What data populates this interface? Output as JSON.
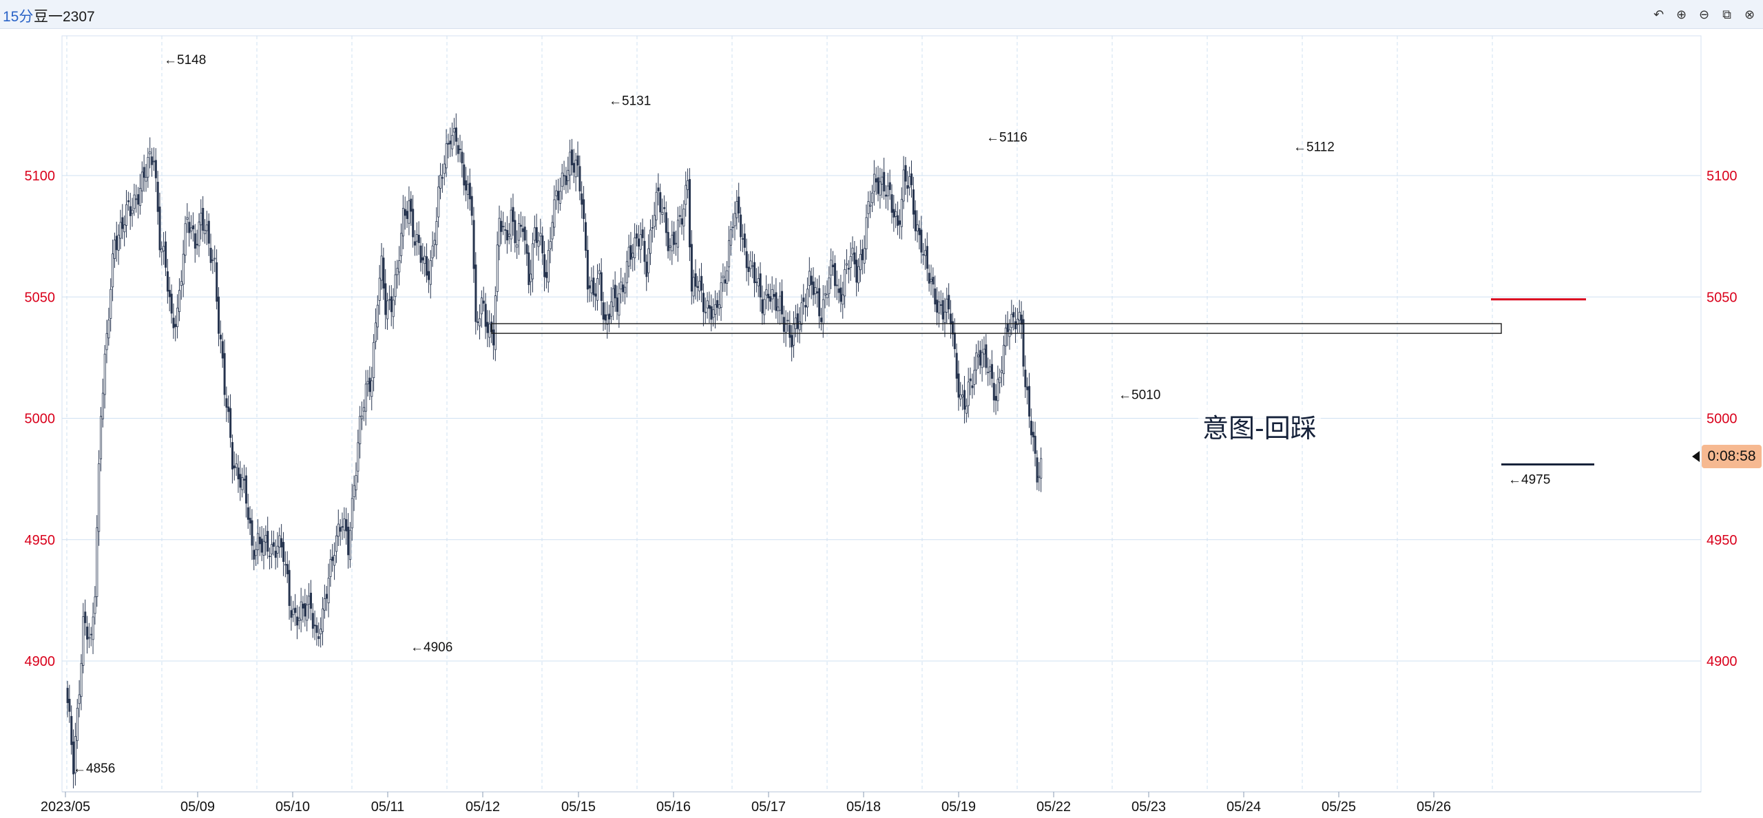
{
  "header": {
    "period": "15分",
    "symbol": "豆一2307",
    "tools": [
      {
        "name": "undo-icon",
        "glyph": "↶"
      },
      {
        "name": "zoom-in-icon",
        "glyph": "⊕"
      },
      {
        "name": "zoom-out-icon",
        "glyph": "⊖"
      },
      {
        "name": "layout-icon",
        "glyph": "⧉"
      },
      {
        "name": "close-icon",
        "glyph": "⊗"
      }
    ]
  },
  "colors": {
    "price_axis": "#d9001b",
    "candle": "#26344f",
    "support_line": "#d9001b",
    "grid": "#cfe0f2",
    "countdown_bg": "#f6b991"
  },
  "countdown": "0:08:58",
  "annotation": "意图-回踩",
  "chart_data": {
    "type": "candlestick",
    "title": "",
    "xlabel": "",
    "ylabel": "",
    "ylim": [
      4860,
      5148
    ],
    "yticks": [
      4900,
      4950,
      5000,
      5050,
      5100
    ],
    "x_ticks": [
      "2023/05",
      "05/09",
      "05/10",
      "05/11",
      "05/12",
      "05/15",
      "05/16",
      "05/17",
      "05/18",
      "05/19",
      "05/22",
      "05/23",
      "05/24",
      "05/25",
      "05/26"
    ],
    "extrema_labels": [
      {
        "date": "05/08",
        "price": 5148,
        "label": "←5148"
      },
      {
        "date": "05/15",
        "price": 5131,
        "label": "←5131"
      },
      {
        "date": "05/19",
        "price": 5116,
        "label": "←5116"
      },
      {
        "date": "05/24",
        "price": 5112,
        "label": "←5112"
      },
      {
        "date": "05/22",
        "price": 5010,
        "label": "←5010"
      },
      {
        "date": "05/26",
        "price": 4975,
        "label": "←4975"
      },
      {
        "date": "05/11",
        "price": 4906,
        "label": "←4906"
      },
      {
        "date": "2023/05",
        "price": 4856,
        "label": "←4856"
      }
    ],
    "zone": {
      "from": "05/12",
      "to": "05/26",
      "low": 5035,
      "high": 5039
    },
    "support_level": 5049,
    "last_price": 4981,
    "anchors": [
      [
        0,
        4880
      ],
      [
        3,
        4857
      ],
      [
        8,
        4915
      ],
      [
        12,
        4905
      ],
      [
        14,
        4932
      ],
      [
        17,
        5005
      ],
      [
        20,
        5030
      ],
      [
        24,
        5075
      ],
      [
        28,
        5080
      ],
      [
        32,
        5085
      ],
      [
        36,
        5095
      ],
      [
        40,
        5100
      ],
      [
        44,
        5110
      ],
      [
        47,
        5075
      ],
      [
        50,
        5060
      ],
      [
        53,
        5040
      ],
      [
        56,
        5045
      ],
      [
        58,
        5060
      ],
      [
        61,
        5080
      ],
      [
        65,
        5075
      ],
      [
        68,
        5082
      ],
      [
        72,
        5070
      ],
      [
        75,
        5065
      ],
      [
        77,
        5040
      ],
      [
        80,
        5010
      ],
      [
        84,
        4985
      ],
      [
        88,
        4975
      ],
      [
        91,
        4965
      ],
      [
        94,
        4948
      ],
      [
        97,
        4950
      ],
      [
        100,
        4945
      ],
      [
        104,
        4947
      ],
      [
        107,
        4950
      ],
      [
        110,
        4942
      ],
      [
        113,
        4925
      ],
      [
        116,
        4920
      ],
      [
        120,
        4918
      ],
      [
        124,
        4925
      ],
      [
        127,
        4910
      ],
      [
        130,
        4915
      ],
      [
        133,
        4935
      ],
      [
        136,
        4950
      ],
      [
        140,
        4955
      ],
      [
        143,
        4948
      ],
      [
        146,
        4975
      ],
      [
        149,
        4995
      ],
      [
        152,
        5010
      ],
      [
        155,
        5020
      ],
      [
        158,
        5050
      ],
      [
        160,
        5060
      ],
      [
        162,
        5045
      ],
      [
        165,
        5050
      ],
      [
        168,
        5060
      ],
      [
        171,
        5080
      ],
      [
        174,
        5090
      ],
      [
        177,
        5075
      ],
      [
        180,
        5065
      ],
      [
        183,
        5060
      ],
      [
        186,
        5070
      ],
      [
        189,
        5090
      ],
      [
        192,
        5105
      ],
      [
        195,
        5120
      ],
      [
        198,
        5115
      ],
      [
        201,
        5100
      ],
      [
        204,
        5095
      ],
      [
        206,
        5090
      ],
      [
        208,
        5035
      ],
      [
        211,
        5045
      ],
      [
        214,
        5040
      ],
      [
        217,
        5035
      ],
      [
        220,
        5080
      ],
      [
        223,
        5075
      ],
      [
        226,
        5085
      ],
      [
        229,
        5070
      ],
      [
        232,
        5080
      ],
      [
        235,
        5060
      ],
      [
        238,
        5075
      ],
      [
        241,
        5070
      ],
      [
        244,
        5060
      ],
      [
        247,
        5085
      ],
      [
        250,
        5090
      ],
      [
        253,
        5100
      ],
      [
        256,
        5108
      ],
      [
        259,
        5102
      ],
      [
        262,
        5090
      ],
      [
        265,
        5060
      ],
      [
        268,
        5050
      ],
      [
        271,
        5055
      ],
      [
        274,
        5040
      ],
      [
        277,
        5050
      ],
      [
        280,
        5045
      ],
      [
        283,
        5055
      ],
      [
        286,
        5070
      ],
      [
        289,
        5068
      ],
      [
        292,
        5075
      ],
      [
        295,
        5065
      ],
      [
        298,
        5080
      ],
      [
        301,
        5090
      ],
      [
        304,
        5085
      ],
      [
        307,
        5070
      ],
      [
        310,
        5072
      ],
      [
        313,
        5085
      ],
      [
        316,
        5100
      ],
      [
        318,
        5050
      ],
      [
        321,
        5055
      ],
      [
        324,
        5050
      ],
      [
        327,
        5045
      ],
      [
        330,
        5040
      ],
      [
        333,
        5055
      ],
      [
        336,
        5065
      ],
      [
        339,
        5080
      ],
      [
        342,
        5085
      ],
      [
        345,
        5070
      ],
      [
        348,
        5060
      ],
      [
        351,
        5055
      ],
      [
        354,
        5050
      ],
      [
        357,
        5052
      ],
      [
        360,
        5045
      ],
      [
        363,
        5048
      ],
      [
        366,
        5040
      ],
      [
        369,
        5030
      ],
      [
        372,
        5040
      ],
      [
        375,
        5050
      ],
      [
        378,
        5055
      ],
      [
        381,
        5050
      ],
      [
        384,
        5045
      ],
      [
        387,
        5055
      ],
      [
        390,
        5060
      ],
      [
        393,
        5050
      ],
      [
        396,
        5060
      ],
      [
        399,
        5065
      ],
      [
        402,
        5060
      ],
      [
        405,
        5070
      ],
      [
        408,
        5085
      ],
      [
        411,
        5095
      ],
      [
        414,
        5100
      ],
      [
        417,
        5095
      ],
      [
        420,
        5085
      ],
      [
        423,
        5080
      ],
      [
        426,
        5100
      ],
      [
        429,
        5095
      ],
      [
        432,
        5080
      ],
      [
        435,
        5075
      ],
      [
        438,
        5060
      ],
      [
        441,
        5050
      ],
      [
        444,
        5048
      ],
      [
        447,
        5045
      ],
      [
        450,
        5040
      ],
      [
        452,
        5025
      ],
      [
        455,
        5010
      ],
      [
        458,
        5005
      ],
      [
        461,
        5015
      ],
      [
        464,
        5030
      ],
      [
        467,
        5025
      ],
      [
        470,
        5015
      ],
      [
        473,
        5010
      ],
      [
        476,
        5025
      ],
      [
        479,
        5035
      ],
      [
        482,
        5040
      ],
      [
        484,
        5045
      ],
      [
        486,
        5040
      ],
      [
        488,
        5010
      ],
      [
        491,
        4995
      ],
      [
        494,
        4980
      ],
      [
        496,
        4981
      ]
    ]
  }
}
